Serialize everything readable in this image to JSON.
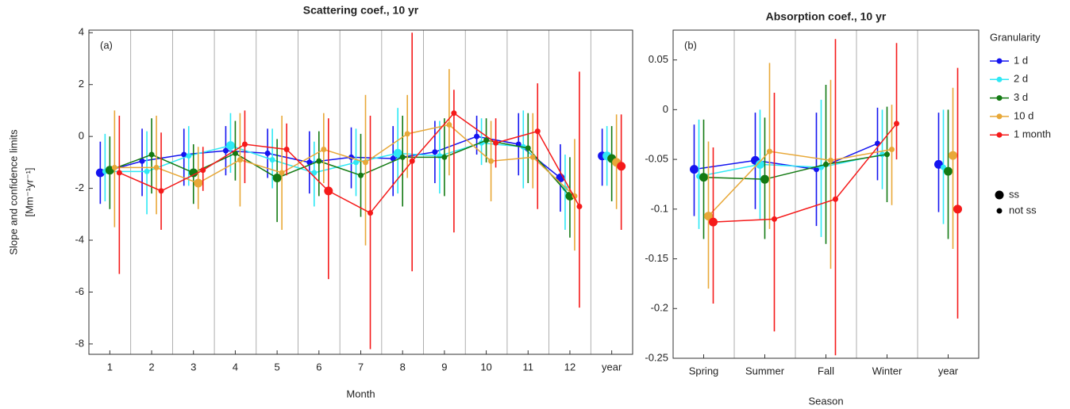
{
  "chart_data": [
    {
      "type": "errorbar",
      "title": "Scattering coef., 10 yr",
      "panel_label": "(a)",
      "xlabel": "Month",
      "ylabel": "Slope and confidence limits",
      "ylabel_unit": "[Mm⁻¹yr⁻¹]",
      "categories": [
        "1",
        "2",
        "3",
        "4",
        "5",
        "6",
        "7",
        "8",
        "9",
        "10",
        "11",
        "12"
      ],
      "year_label": "year",
      "ylim": [
        -8.4,
        4.1
      ],
      "yticks": [
        -8,
        -6,
        -4,
        -2,
        0,
        2,
        4
      ],
      "series": [
        {
          "name": "1 d",
          "color": "#1414f0",
          "values": [
            -1.4,
            -0.95,
            -0.7,
            -0.55,
            -0.65,
            -1.0,
            -0.8,
            -0.85,
            -0.6,
            0.0,
            -0.3,
            -1.6
          ],
          "lower": [
            -2.6,
            -2.3,
            -1.9,
            -1.5,
            -1.6,
            -2.2,
            -2.0,
            -2.3,
            -1.8,
            -0.7,
            -1.5,
            -2.9
          ],
          "upper": [
            -0.2,
            0.3,
            0.3,
            0.4,
            0.3,
            0.2,
            0.35,
            0.4,
            0.6,
            0.8,
            0.9,
            -0.3
          ],
          "ss": [
            true,
            false,
            false,
            false,
            false,
            false,
            false,
            false,
            false,
            false,
            false,
            true
          ],
          "year": {
            "value": -0.75,
            "lower": -1.9,
            "upper": 0.3,
            "ss": true
          }
        },
        {
          "name": "2 d",
          "color": "#2ee8f5",
          "values": [
            -1.35,
            -1.35,
            -0.75,
            -0.35,
            -0.9,
            -1.4,
            -1.0,
            -0.65,
            -0.75,
            -0.25,
            -0.4,
            -2.0
          ],
          "lower": [
            -2.5,
            -3.0,
            -1.9,
            -1.4,
            -2.0,
            -2.7,
            -2.3,
            -2.2,
            -2.2,
            -1.1,
            -2.0,
            -3.6
          ],
          "upper": [
            0.1,
            0.2,
            0.4,
            0.9,
            0.3,
            -0.2,
            0.3,
            1.1,
            0.6,
            0.7,
            1.0,
            -0.7
          ],
          "ss": [
            false,
            false,
            false,
            true,
            false,
            false,
            false,
            true,
            false,
            false,
            false,
            false
          ],
          "year": {
            "value": -0.75,
            "lower": -1.9,
            "upper": 0.4,
            "ss": true
          }
        },
        {
          "name": "3 d",
          "color": "#137a13",
          "values": [
            -1.3,
            -0.7,
            -1.4,
            -0.65,
            -1.6,
            -0.95,
            -1.5,
            -0.8,
            -0.8,
            -0.15,
            -0.45,
            -2.3
          ],
          "lower": [
            -2.8,
            -2.2,
            -2.6,
            -1.7,
            -3.3,
            -2.3,
            -3.1,
            -2.7,
            -2.3,
            -1.0,
            -1.8,
            -3.9
          ],
          "upper": [
            0.0,
            0.7,
            -0.3,
            0.6,
            -0.1,
            0.2,
            0.1,
            0.8,
            0.7,
            0.7,
            0.9,
            -0.8
          ],
          "ss": [
            true,
            false,
            true,
            false,
            true,
            false,
            false,
            false,
            false,
            false,
            false,
            true
          ],
          "year": {
            "value": -0.85,
            "lower": -2.5,
            "upper": 0.4,
            "ss": true
          }
        },
        {
          "name": "10 d",
          "color": "#e8a838",
          "values": [
            -1.2,
            -1.2,
            -1.8,
            -0.9,
            -1.4,
            -0.5,
            -1.0,
            0.1,
            0.45,
            -0.95,
            -0.8,
            -2.3
          ],
          "lower": [
            -3.5,
            -3.0,
            -2.8,
            -2.7,
            -3.6,
            -1.8,
            -4.2,
            -1.6,
            -1.5,
            -2.5,
            -2.0,
            -4.4
          ],
          "upper": [
            1.0,
            0.8,
            -0.4,
            0.9,
            0.8,
            0.9,
            1.6,
            1.6,
            2.6,
            0.6,
            0.9,
            -0.1
          ],
          "ss": [
            false,
            false,
            true,
            false,
            false,
            false,
            false,
            false,
            false,
            false,
            false,
            false
          ],
          "year": {
            "value": -1.0,
            "lower": -2.8,
            "upper": 0.85,
            "ss": true
          }
        },
        {
          "name": "1 month",
          "color": "#f51a1a",
          "values": [
            -1.4,
            -2.1,
            -1.3,
            -0.3,
            -0.5,
            -2.1,
            -2.95,
            -0.95,
            0.9,
            -0.25,
            0.2,
            -2.7
          ],
          "lower": [
            -5.3,
            -3.6,
            -2.1,
            -1.8,
            -1.5,
            -5.5,
            -8.2,
            -5.2,
            -3.7,
            -1.2,
            -2.8,
            -6.6
          ],
          "upper": [
            0.8,
            0.15,
            -0.4,
            1.0,
            0.5,
            0.7,
            0.8,
            4.0,
            1.8,
            0.7,
            2.05,
            2.5
          ],
          "ss": [
            false,
            false,
            false,
            false,
            false,
            true,
            false,
            false,
            false,
            false,
            false,
            false
          ],
          "year": {
            "value": -1.15,
            "lower": -3.6,
            "upper": 0.85,
            "ss": true
          }
        }
      ]
    },
    {
      "type": "errorbar",
      "title": "Absorption coef., 10 yr",
      "panel_label": "(b)",
      "xlabel": "Season",
      "categories": [
        "Spring",
        "Summer",
        "Fall",
        "Winter"
      ],
      "year_label": "year",
      "ylim": [
        -0.25,
        0.08
      ],
      "yticks": [
        -0.25,
        -0.2,
        -0.15,
        -0.1,
        -0.05,
        0,
        0.05
      ],
      "legend": "outside right",
      "legend_title": "Granularity",
      "ss_labels": [
        "ss",
        "not ss"
      ],
      "series": [
        {
          "name": "1 d",
          "color": "#1414f0",
          "values": [
            -0.06,
            -0.051,
            -0.06,
            -0.034
          ],
          "lower": [
            -0.107,
            -0.1,
            -0.117,
            -0.071
          ],
          "upper": [
            -0.015,
            -0.003,
            -0.003,
            0.002
          ],
          "ss": [
            true,
            true,
            false,
            false
          ],
          "year": {
            "value": -0.055,
            "lower": -0.103,
            "upper": -0.003,
            "ss": true
          }
        },
        {
          "name": "2 d",
          "color": "#2ee8f5",
          "values": [
            -0.067,
            -0.055,
            -0.058,
            -0.045
          ],
          "lower": [
            -0.12,
            -0.11,
            -0.128,
            -0.08
          ],
          "upper": [
            -0.01,
            0.0,
            0.01,
            0.0
          ],
          "ss": [
            false,
            true,
            false,
            false
          ],
          "year": {
            "value": -0.058,
            "lower": -0.115,
            "upper": 0.0,
            "ss": false
          }
        },
        {
          "name": "3 d",
          "color": "#137a13",
          "values": [
            -0.068,
            -0.07,
            -0.055,
            -0.045
          ],
          "lower": [
            -0.13,
            -0.13,
            -0.135,
            -0.093
          ],
          "upper": [
            -0.01,
            -0.008,
            0.025,
            0.003
          ],
          "ss": [
            true,
            true,
            false,
            false
          ],
          "year": {
            "value": -0.062,
            "lower": -0.13,
            "upper": 0.0,
            "ss": true
          }
        },
        {
          "name": "10 d",
          "color": "#e8a838",
          "values": [
            -0.107,
            -0.042,
            -0.051,
            -0.04
          ],
          "lower": [
            -0.18,
            -0.12,
            -0.16,
            -0.096
          ],
          "upper": [
            -0.032,
            0.047,
            0.03,
            0.005
          ],
          "ss": [
            true,
            false,
            false,
            false
          ],
          "year": {
            "value": -0.046,
            "lower": -0.14,
            "upper": 0.022,
            "ss": true
          }
        },
        {
          "name": "1 month",
          "color": "#f51a1a",
          "values": [
            -0.113,
            -0.11,
            -0.09,
            -0.014
          ],
          "lower": [
            -0.195,
            -0.223,
            -0.247,
            -0.05
          ],
          "upper": [
            -0.038,
            0.017,
            0.071,
            0.067
          ],
          "ss": [
            true,
            false,
            false,
            false
          ],
          "year": {
            "value": -0.1,
            "lower": -0.21,
            "upper": 0.042,
            "ss": true
          }
        }
      ]
    }
  ]
}
